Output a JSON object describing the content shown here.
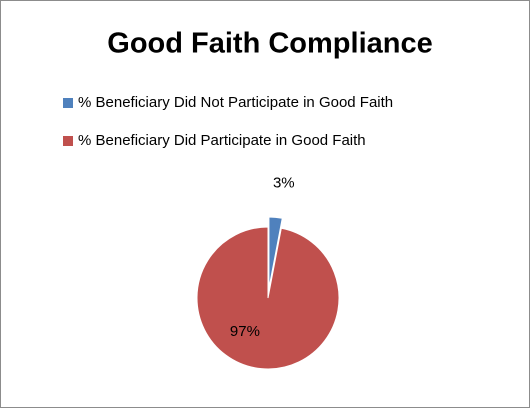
{
  "chart_data": {
    "type": "pie",
    "title": "Good Faith Compliance",
    "categories": [
      "% Beneficiary Did Not Participate in Good Faith",
      "% Beneficiary Did Participate in Good Faith"
    ],
    "values": [
      3,
      97
    ],
    "value_labels": [
      "3%",
      "97%"
    ],
    "colors": [
      "#4f81bd",
      "#c0504d"
    ]
  }
}
